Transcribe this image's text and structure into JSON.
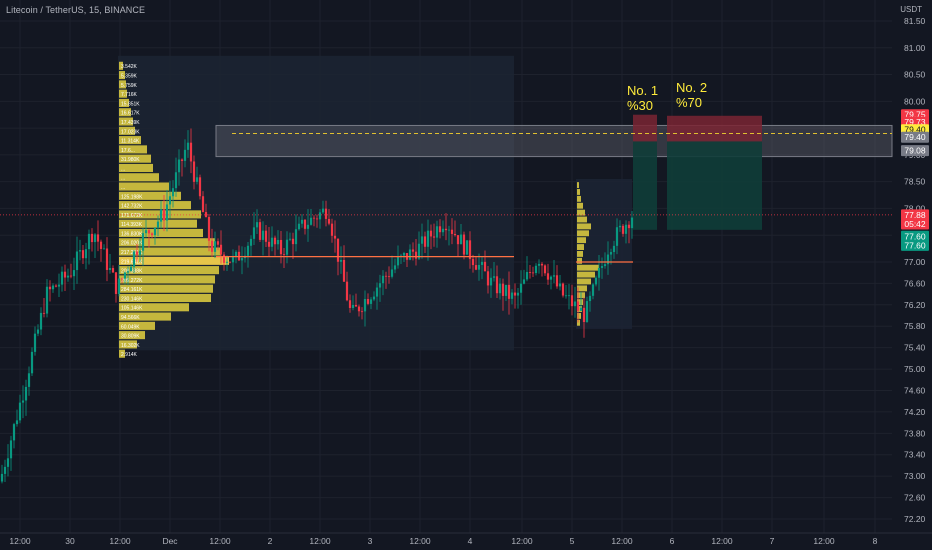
{
  "header": {
    "symbol_line": "Litecoin / TetherUS, 15, BINANCE",
    "unit": "USDT"
  },
  "price_axis": {
    "ticks": [
      "81.50",
      "81.00",
      "80.50",
      "80.00",
      "79.50",
      "79.00",
      "78.50",
      "78.00",
      "77.50",
      "77.00",
      "76.60",
      "76.20",
      "75.80",
      "75.40",
      "75.00",
      "74.60",
      "74.20",
      "73.80",
      "73.40",
      "73.00",
      "72.60",
      "72.20"
    ],
    "tags": [
      {
        "text": "79.75",
        "color": "#f23645"
      },
      {
        "text": "79.73",
        "color": "#f23645"
      },
      {
        "text": "79.40",
        "color": "#ffeb3b"
      },
      {
        "text": "79.40",
        "color": "#787b86"
      },
      {
        "text": "79.08",
        "color": "#787b86"
      },
      {
        "text": "77.88",
        "color": "#f23645"
      },
      {
        "text": "05:42",
        "color": "#f23645"
      },
      {
        "text": "77.60",
        "color": "#089981"
      },
      {
        "text": "77.60",
        "color": "#089981"
      }
    ]
  },
  "time_axis": {
    "ticks": [
      "12:00",
      "30",
      "12:00",
      "Dec",
      "12:00",
      "2",
      "12:00",
      "3",
      "12:00",
      "4",
      "12:00",
      "5",
      "12:00",
      "6",
      "12:00",
      "7",
      "12:00",
      "8"
    ]
  },
  "annotations": {
    "target1_line1": "No. 1",
    "target1_line2": "%30",
    "target2_line1": "No. 2",
    "target2_line2": "%70"
  },
  "volume_profile": {
    "labels": [
      "3.542K",
      "5.359K",
      "5.759K",
      "7.716K",
      "15.851K",
      "16.617K",
      "17.439K",
      "17.023K",
      "11.314K",
      "17.6...",
      "31.980K",
      "...",
      "...",
      "...",
      "125.198K",
      "142.732K",
      "171.672K",
      "114.393K",
      "136.830K",
      "206.020K",
      "217.251K",
      "219.641K",
      "208.338K",
      "205.272K",
      "284.161K",
      "230.146K",
      "105.146K",
      "94.566K",
      "60.049K",
      "30.809K",
      "16.302K",
      "2.914K"
    ]
  },
  "chart_data": {
    "type": "candlestick",
    "title": "Litecoin / TetherUS, 15, BINANCE",
    "ylim": [
      72.0,
      81.8
    ],
    "y_ticks": [
      81.5,
      81.0,
      80.5,
      80.0,
      79.5,
      79.0,
      78.5,
      78.0,
      77.5,
      77.0,
      76.6,
      76.2,
      75.8,
      75.4,
      75.0,
      74.6,
      74.2,
      73.8,
      73.4,
      73.0,
      72.6,
      72.2
    ],
    "x_ticks": [
      "12:00",
      "30",
      "12:00",
      "Dec",
      "12:00",
      "2",
      "12:00",
      "3",
      "12:00",
      "4",
      "12:00",
      "5",
      "12:00",
      "6",
      "12:00",
      "7",
      "12:00",
      "8"
    ],
    "last_price": 77.88,
    "bar_countdown": "05:42",
    "resistance_zone": [
      79.08,
      79.4
    ],
    "target_line": 79.4,
    "poc_line_1": 77.1,
    "poc_line_2": 77.0,
    "targets": [
      {
        "name": "No. 1",
        "share": "%30",
        "stop_zone": [
          79.4,
          79.75
        ],
        "profit_zone": [
          77.6,
          79.4
        ]
      },
      {
        "name": "No. 2",
        "share": "%70",
        "stop_zone": [
          79.4,
          79.73
        ],
        "profit_zone": [
          77.6,
          79.4
        ]
      }
    ],
    "price_path": [
      {
        "x": "Nov 29 12:00",
        "y": 72.9
      },
      {
        "x": "Nov 29 14:00",
        "y": 74.6
      },
      {
        "x": "Nov 29 18:00",
        "y": 76.4
      },
      {
        "x": "Nov 30 00:00",
        "y": 76.8
      },
      {
        "x": "Nov 30 06:00",
        "y": 77.6
      },
      {
        "x": "Nov 30 12:00",
        "y": 76.5
      },
      {
        "x": "Nov 30 18:00",
        "y": 77.4
      },
      {
        "x": "Dec 1 00:00",
        "y": 77.9
      },
      {
        "x": "Dec 1 06:00",
        "y": 79.2
      },
      {
        "x": "Dec 1 08:00",
        "y": 77.3
      },
      {
        "x": "Dec 1 12:00",
        "y": 77.0
      },
      {
        "x": "Dec 1 18:00",
        "y": 77.6
      },
      {
        "x": "Dec 2 00:00",
        "y": 77.2
      },
      {
        "x": "Dec 2 06:00",
        "y": 77.7
      },
      {
        "x": "Dec 2 12:00",
        "y": 78.0
      },
      {
        "x": "Dec 2 18:00",
        "y": 76.0
      },
      {
        "x": "Dec 3 00:00",
        "y": 76.5
      },
      {
        "x": "Dec 3 06:00",
        "y": 77.0
      },
      {
        "x": "Dec 3 12:00",
        "y": 77.3
      },
      {
        "x": "Dec 3 18:00",
        "y": 77.8
      },
      {
        "x": "Dec 4 00:00",
        "y": 77.2
      },
      {
        "x": "Dec 4 06:00",
        "y": 76.6
      },
      {
        "x": "Dec 4 12:00",
        "y": 76.3
      },
      {
        "x": "Dec 4 18:00",
        "y": 77.1
      },
      {
        "x": "Dec 5 00:00",
        "y": 76.4
      },
      {
        "x": "Dec 5 06:00",
        "y": 76.0
      },
      {
        "x": "Dec 5 10:00",
        "y": 77.3
      },
      {
        "x": "Dec 5 12:00",
        "y": 77.88
      }
    ]
  }
}
